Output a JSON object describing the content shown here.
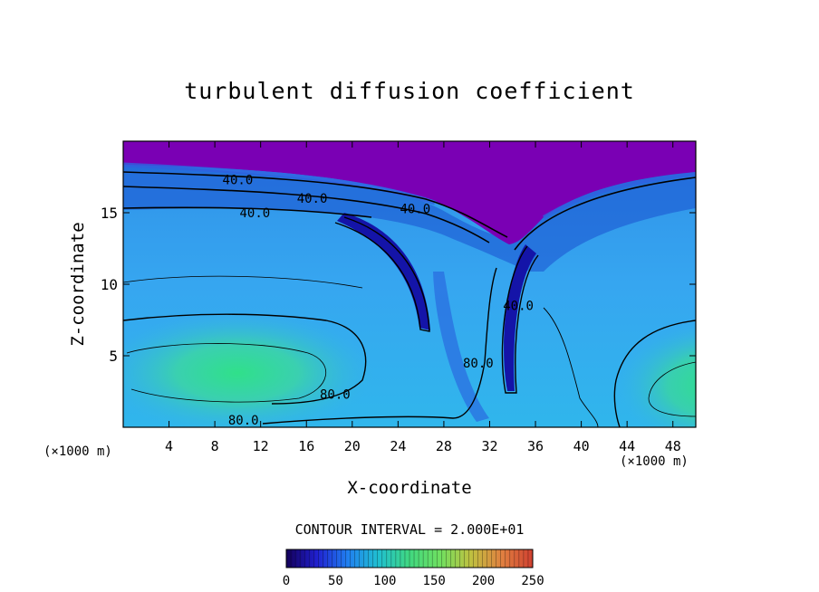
{
  "chart_data": {
    "type": "heatmap",
    "title": "turbulent diffusion coefficient",
    "xlabel": "X-coordinate",
    "ylabel": "Z-coordinate",
    "x_unit_left": "(×1000 m)",
    "x_unit_right": "(×1000 m)",
    "xlim": [
      0,
      50
    ],
    "ylim": [
      0,
      20
    ],
    "xticks": [
      4,
      8,
      12,
      16,
      20,
      24,
      28,
      32,
      36,
      40,
      44,
      48
    ],
    "yticks": [
      5,
      10,
      15
    ],
    "contour_interval_text": "CONTOUR INTERVAL = 2.000E+01",
    "contour_labels": [
      {
        "text": "40.0",
        "x": 10,
        "z": 17.3
      },
      {
        "text": "40.0",
        "x": 16.5,
        "z": 16.0
      },
      {
        "text": "40.0",
        "x": 11.5,
        "z": 15.0
      },
      {
        "text": "40.0",
        "x": 25.5,
        "z": 15.3
      },
      {
        "text": "40.0",
        "x": 34.5,
        "z": 8.5
      },
      {
        "text": "80.0",
        "x": 18.5,
        "z": 2.3
      },
      {
        "text": "80.0",
        "x": 10.5,
        "z": 0.5
      },
      {
        "text": "80.0",
        "x": 31.0,
        "z": 4.5
      }
    ],
    "colorbar": {
      "min": 0,
      "max": 250,
      "ticks": [
        0,
        50,
        100,
        150,
        200,
        250
      ],
      "colors": [
        "#14005a",
        "#2020d0",
        "#2080f0",
        "#20c0d0",
        "#40d880",
        "#70e060",
        "#c0c040",
        "#e08040",
        "#d04030"
      ]
    },
    "colors": {
      "top_layer": "#7a00b4",
      "low_value": "#1010b0",
      "mid_value": "#30a8f0",
      "high_value": "#30e090"
    }
  }
}
